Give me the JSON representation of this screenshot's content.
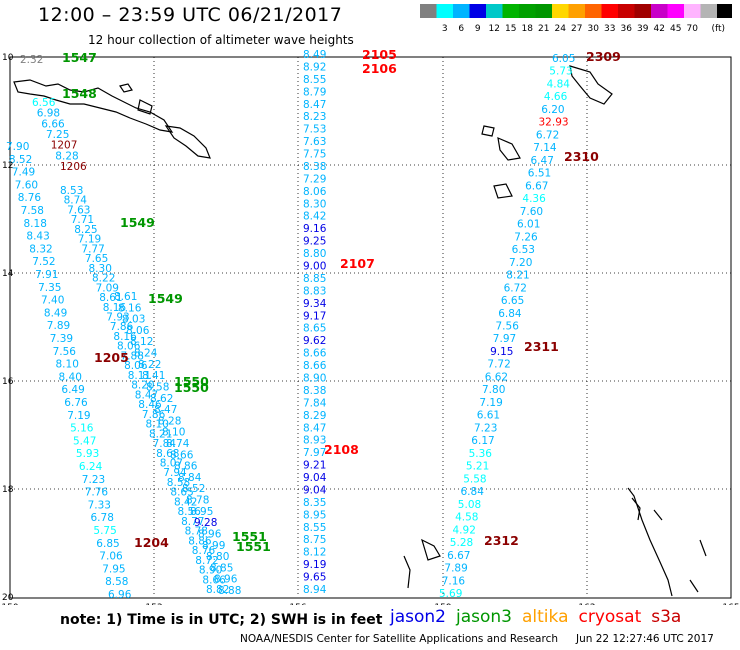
{
  "header": {
    "title": "12:00 – 23:59 UTC 06/21/2017",
    "subtitle": "12 hour collection of altimeter wave heights"
  },
  "colorbar": {
    "colors": [
      "#808080",
      "#00ffff",
      "#00b4ff",
      "#0000e6",
      "#00c8c8",
      "#00b400",
      "#00a000",
      "#009600",
      "#ffd700",
      "#ffa000",
      "#ff6400",
      "#ff0000",
      "#c80000",
      "#a00000",
      "#c800c8",
      "#ff00ff",
      "#ffb4ff",
      "#b4b4b4",
      "#000000"
    ],
    "labels": [
      "3",
      "6",
      "9",
      "12",
      "15",
      "18",
      "21",
      "24",
      "27",
      "30",
      "33",
      "36",
      "39",
      "42",
      "45",
      "70"
    ],
    "unit": "(ft)"
  },
  "axes": {
    "lat_labels": [
      "10",
      "12",
      "14",
      "16",
      "18",
      "20"
    ],
    "lon_labels": [
      "150",
      "153",
      "156",
      "159",
      "162",
      "165"
    ]
  },
  "tracks": {
    "t1547": {
      "labels": [
        {
          "text": "1547",
          "color": "#009600"
        }
      ],
      "points": [
        {
          "v": "2.32",
          "c": "#808080"
        }
      ]
    },
    "t1548": {
      "labels": [
        {
          "text": "1548",
          "color": "#009600"
        }
      ],
      "points": [
        {
          "v": "6.56",
          "c": "#00ffff"
        },
        {
          "v": "6.98",
          "c": "#00b4ff"
        },
        {
          "v": "6.66",
          "c": "#00b4ff"
        },
        {
          "v": "7.25",
          "c": "#00b4ff"
        },
        {
          "v": "1207",
          "c": "#8b0000"
        },
        {
          "v": "8.28",
          "c": "#00b4ff"
        },
        {
          "v": "1206",
          "c": "#8b0000"
        }
      ]
    },
    "t1205": {
      "labels": [
        {
          "text": "1205",
          "color": "#8b0000"
        },
        {
          "text": "1204",
          "color": "#8b0000"
        }
      ],
      "points": [
        {
          "v": "7.90",
          "c": "#00b4ff"
        },
        {
          "v": "8.52",
          "c": "#00b4ff"
        },
        {
          "v": "7.49",
          "c": "#00b4ff"
        },
        {
          "v": "7.60",
          "c": "#00b4ff"
        },
        {
          "v": "8.76",
          "c": "#00b4ff"
        },
        {
          "v": "7.58",
          "c": "#00b4ff"
        },
        {
          "v": "8.18",
          "c": "#00b4ff"
        },
        {
          "v": "8.43",
          "c": "#00b4ff"
        },
        {
          "v": "8.32",
          "c": "#00b4ff"
        },
        {
          "v": "7.52",
          "c": "#00b4ff"
        },
        {
          "v": "7.91",
          "c": "#00b4ff"
        },
        {
          "v": "7.35",
          "c": "#00b4ff"
        },
        {
          "v": "7.40",
          "c": "#00b4ff"
        },
        {
          "v": "8.49",
          "c": "#00b4ff"
        },
        {
          "v": "7.89",
          "c": "#00b4ff"
        },
        {
          "v": "7.39",
          "c": "#00b4ff"
        },
        {
          "v": "7.56",
          "c": "#00b4ff"
        },
        {
          "v": "8.10",
          "c": "#00b4ff"
        },
        {
          "v": "8.40",
          "c": "#00b4ff"
        },
        {
          "v": "6.49",
          "c": "#00b4ff"
        },
        {
          "v": "6.76",
          "c": "#00b4ff"
        },
        {
          "v": "7.19",
          "c": "#00b4ff"
        },
        {
          "v": "5.16",
          "c": "#00ffff"
        },
        {
          "v": "5.47",
          "c": "#00ffff"
        },
        {
          "v": "5.93",
          "c": "#00ffff"
        },
        {
          "v": "6.24",
          "c": "#00ffff"
        },
        {
          "v": "7.23",
          "c": "#00b4ff"
        },
        {
          "v": "7.76",
          "c": "#00b4ff"
        },
        {
          "v": "7.33",
          "c": "#00b4ff"
        },
        {
          "v": "6.78",
          "c": "#00b4ff"
        },
        {
          "v": "5.75",
          "c": "#00ffff"
        },
        {
          "v": "6.85",
          "c": "#00b4ff"
        },
        {
          "v": "7.06",
          "c": "#00b4ff"
        },
        {
          "v": "7.95",
          "c": "#00b4ff"
        },
        {
          "v": "8.58",
          "c": "#00b4ff"
        },
        {
          "v": "6.96",
          "c": "#00b4ff"
        }
      ]
    },
    "t1549a": {
      "labels": [
        {
          "text": "1549",
          "color": "#009600"
        }
      ],
      "points": [
        {
          "v": "8.53",
          "c": "#00b4ff"
        },
        {
          "v": "8.74",
          "c": "#00b4ff"
        },
        {
          "v": "7.63",
          "c": "#00b4ff"
        },
        {
          "v": "7.71",
          "c": "#00b4ff"
        },
        {
          "v": "8.25",
          "c": "#00b4ff"
        },
        {
          "v": "7.19",
          "c": "#00b4ff"
        },
        {
          "v": "7.77",
          "c": "#00b4ff"
        },
        {
          "v": "7.65",
          "c": "#00b4ff"
        },
        {
          "v": "8.30",
          "c": "#00b4ff"
        },
        {
          "v": "8.22",
          "c": "#00b4ff"
        },
        {
          "v": "7.09",
          "c": "#00b4ff"
        },
        {
          "v": "8.61",
          "c": "#00b4ff"
        },
        {
          "v": "8.16",
          "c": "#00b4ff"
        },
        {
          "v": "7.93",
          "c": "#00b4ff"
        },
        {
          "v": "7.86",
          "c": "#00b4ff"
        },
        {
          "v": "8.16",
          "c": "#00b4ff"
        },
        {
          "v": "8.06",
          "c": "#00b4ff"
        },
        {
          "v": "7.88",
          "c": "#00b4ff"
        },
        {
          "v": "8.06",
          "c": "#00b4ff"
        },
        {
          "v": "8.11",
          "c": "#00b4ff"
        },
        {
          "v": "8.20",
          "c": "#00b4ff"
        },
        {
          "v": "8.47",
          "c": "#00b4ff"
        },
        {
          "v": "8.46",
          "c": "#00b4ff"
        },
        {
          "v": "7.86",
          "c": "#00b4ff"
        },
        {
          "v": "8.10",
          "c": "#00b4ff"
        },
        {
          "v": "8.21",
          "c": "#00b4ff"
        },
        {
          "v": "7.84",
          "c": "#00b4ff"
        },
        {
          "v": "8.68",
          "c": "#00b4ff"
        },
        {
          "v": "8.07",
          "c": "#00b4ff"
        },
        {
          "v": "7.94",
          "c": "#00b4ff"
        },
        {
          "v": "8.58",
          "c": "#00b4ff"
        },
        {
          "v": "8.65",
          "c": "#00b4ff"
        },
        {
          "v": "8.42",
          "c": "#00b4ff"
        },
        {
          "v": "8.56",
          "c": "#00b4ff"
        },
        {
          "v": "8.77",
          "c": "#00b4ff"
        },
        {
          "v": "8.78",
          "c": "#00b4ff"
        },
        {
          "v": "8.86",
          "c": "#00b4ff"
        },
        {
          "v": "8.76",
          "c": "#00b4ff"
        },
        {
          "v": "8.72",
          "c": "#00b4ff"
        },
        {
          "v": "8.90",
          "c": "#00b4ff"
        },
        {
          "v": "8.66",
          "c": "#00b4ff"
        },
        {
          "v": "8.82",
          "c": "#00b4ff"
        }
      ]
    },
    "t1549b": {
      "labels": [
        {
          "text": "1549",
          "color": "#009600"
        },
        {
          "text": "1550",
          "color": "#009600"
        },
        {
          "text": "1550",
          "color": "#009600"
        },
        {
          "text": "1551",
          "color": "#009600"
        },
        {
          "text": "1551",
          "color": "#009600"
        }
      ],
      "points": [
        {
          "v": "8.61",
          "c": "#00b4ff"
        },
        {
          "v": "8.16",
          "c": "#00b4ff"
        },
        {
          "v": "8.03",
          "c": "#00b4ff"
        },
        {
          "v": "8.06",
          "c": "#00b4ff"
        },
        {
          "v": "8.12",
          "c": "#00b4ff"
        },
        {
          "v": "8.24",
          "c": "#00b4ff"
        },
        {
          "v": "8.22",
          "c": "#00b4ff"
        },
        {
          "v": "8.41",
          "c": "#00b4ff"
        },
        {
          "v": "8.58",
          "c": "#00b4ff"
        },
        {
          "v": "8.62",
          "c": "#00b4ff"
        },
        {
          "v": "8.47",
          "c": "#00b4ff"
        },
        {
          "v": "8.28",
          "c": "#00b4ff"
        },
        {
          "v": "8.10",
          "c": "#00b4ff"
        },
        {
          "v": "8.74",
          "c": "#00b4ff"
        },
        {
          "v": "8.66",
          "c": "#00b4ff"
        },
        {
          "v": "8.86",
          "c": "#00b4ff"
        },
        {
          "v": "8.84",
          "c": "#00b4ff"
        },
        {
          "v": "8.52",
          "c": "#00b4ff"
        },
        {
          "v": "8.78",
          "c": "#00b4ff"
        },
        {
          "v": "8.95",
          "c": "#00b4ff"
        },
        {
          "v": "9.28",
          "c": "#0000e6"
        },
        {
          "v": "8.96",
          "c": "#00b4ff"
        },
        {
          "v": "8.99",
          "c": "#00b4ff"
        },
        {
          "v": "8.80",
          "c": "#00b4ff"
        },
        {
          "v": "8.85",
          "c": "#00b4ff"
        },
        {
          "v": "8.96",
          "c": "#00b4ff"
        },
        {
          "v": "8.88",
          "c": "#00b4ff"
        }
      ]
    },
    "t2105": {
      "labels": [
        {
          "text": "2105",
          "color": "#ff0000"
        },
        {
          "text": "2106",
          "color": "#ff0000"
        },
        {
          "text": "2107",
          "color": "#ff0000"
        },
        {
          "text": "2108",
          "color": "#ff0000"
        }
      ],
      "points": [
        {
          "v": "8.49",
          "c": "#00b4ff"
        },
        {
          "v": "8.92",
          "c": "#00b4ff"
        },
        {
          "v": "8.55",
          "c": "#00b4ff"
        },
        {
          "v": "8.79",
          "c": "#00b4ff"
        },
        {
          "v": "8.47",
          "c": "#00b4ff"
        },
        {
          "v": "8.23",
          "c": "#00b4ff"
        },
        {
          "v": "7.53",
          "c": "#00b4ff"
        },
        {
          "v": "7.63",
          "c": "#00b4ff"
        },
        {
          "v": "7.75",
          "c": "#00b4ff"
        },
        {
          "v": "8.38",
          "c": "#00b4ff"
        },
        {
          "v": "7.29",
          "c": "#00b4ff"
        },
        {
          "v": "8.06",
          "c": "#00b4ff"
        },
        {
          "v": "8.30",
          "c": "#00b4ff"
        },
        {
          "v": "8.42",
          "c": "#00b4ff"
        },
        {
          "v": "9.16",
          "c": "#0000e6"
        },
        {
          "v": "9.25",
          "c": "#0000e6"
        },
        {
          "v": "8.80",
          "c": "#00b4ff"
        },
        {
          "v": "9.00",
          "c": "#0000e6"
        },
        {
          "v": "8.85",
          "c": "#00b4ff"
        },
        {
          "v": "8.83",
          "c": "#00b4ff"
        },
        {
          "v": "9.34",
          "c": "#0000e6"
        },
        {
          "v": "9.17",
          "c": "#0000e6"
        },
        {
          "v": "8.65",
          "c": "#00b4ff"
        },
        {
          "v": "9.62",
          "c": "#0000e6"
        },
        {
          "v": "8.66",
          "c": "#00b4ff"
        },
        {
          "v": "8.66",
          "c": "#00b4ff"
        },
        {
          "v": "8.90",
          "c": "#00b4ff"
        },
        {
          "v": "8.38",
          "c": "#00b4ff"
        },
        {
          "v": "7.84",
          "c": "#00b4ff"
        },
        {
          "v": "8.29",
          "c": "#00b4ff"
        },
        {
          "v": "8.47",
          "c": "#00b4ff"
        },
        {
          "v": "8.93",
          "c": "#00b4ff"
        },
        {
          "v": "7.97",
          "c": "#00b4ff"
        },
        {
          "v": "9.21",
          "c": "#0000e6"
        },
        {
          "v": "9.04",
          "c": "#0000e6"
        },
        {
          "v": "9.04",
          "c": "#0000e6"
        },
        {
          "v": "8.35",
          "c": "#00b4ff"
        },
        {
          "v": "8.95",
          "c": "#00b4ff"
        },
        {
          "v": "8.55",
          "c": "#00b4ff"
        },
        {
          "v": "8.75",
          "c": "#00b4ff"
        },
        {
          "v": "8.12",
          "c": "#00b4ff"
        },
        {
          "v": "9.19",
          "c": "#0000e6"
        },
        {
          "v": "9.65",
          "c": "#0000e6"
        },
        {
          "v": "8.94",
          "c": "#00b4ff"
        }
      ]
    },
    "t2309": {
      "labels": [
        {
          "text": "2309",
          "color": "#8b0000"
        },
        {
          "text": "2310",
          "color": "#8b0000"
        },
        {
          "text": "2311",
          "color": "#8b0000"
        },
        {
          "text": "2312",
          "color": "#8b0000"
        }
      ],
      "points": [
        {
          "v": "6.05",
          "c": "#00b4ff"
        },
        {
          "v": "5.73",
          "c": "#00ffff"
        },
        {
          "v": "4.84",
          "c": "#00ffff"
        },
        {
          "v": "4.66",
          "c": "#00ffff"
        },
        {
          "v": "6.20",
          "c": "#00b4ff"
        },
        {
          "v": "32.93",
          "c": "#ff0000"
        },
        {
          "v": "6.72",
          "c": "#00b4ff"
        },
        {
          "v": "7.14",
          "c": "#00b4ff"
        },
        {
          "v": "6.47",
          "c": "#00b4ff"
        },
        {
          "v": "6.51",
          "c": "#00b4ff"
        },
        {
          "v": "6.67",
          "c": "#00b4ff"
        },
        {
          "v": "4.36",
          "c": "#00ffff"
        },
        {
          "v": "7.60",
          "c": "#00b4ff"
        },
        {
          "v": "6.01",
          "c": "#00b4ff"
        },
        {
          "v": "7.26",
          "c": "#00b4ff"
        },
        {
          "v": "6.53",
          "c": "#00b4ff"
        },
        {
          "v": "7.20",
          "c": "#00b4ff"
        },
        {
          "v": "8.21",
          "c": "#00b4ff"
        },
        {
          "v": "6.72",
          "c": "#00b4ff"
        },
        {
          "v": "6.65",
          "c": "#00b4ff"
        },
        {
          "v": "6.84",
          "c": "#00b4ff"
        },
        {
          "v": "7.56",
          "c": "#00b4ff"
        },
        {
          "v": "7.97",
          "c": "#00b4ff"
        },
        {
          "v": "9.15",
          "c": "#0000e6"
        },
        {
          "v": "7.72",
          "c": "#00b4ff"
        },
        {
          "v": "6.62",
          "c": "#00b4ff"
        },
        {
          "v": "7.80",
          "c": "#00b4ff"
        },
        {
          "v": "7.19",
          "c": "#00b4ff"
        },
        {
          "v": "6.61",
          "c": "#00b4ff"
        },
        {
          "v": "7.23",
          "c": "#00b4ff"
        },
        {
          "v": "6.17",
          "c": "#00b4ff"
        },
        {
          "v": "5.36",
          "c": "#00ffff"
        },
        {
          "v": "5.21",
          "c": "#00ffff"
        },
        {
          "v": "5.58",
          "c": "#00ffff"
        },
        {
          "v": "6.84",
          "c": "#00b4ff"
        },
        {
          "v": "5.08",
          "c": "#00ffff"
        },
        {
          "v": "4.58",
          "c": "#00ffff"
        },
        {
          "v": "4.92",
          "c": "#00ffff"
        },
        {
          "v": "5.28",
          "c": "#00ffff"
        },
        {
          "v": "6.67",
          "c": "#00b4ff"
        },
        {
          "v": "7.89",
          "c": "#00b4ff"
        },
        {
          "v": "7.16",
          "c": "#00b4ff"
        },
        {
          "v": "5.69",
          "c": "#00ffff"
        }
      ]
    }
  },
  "footer": {
    "note": "note: 1) Time is in UTC; 2) SWH is in feet",
    "legend": [
      {
        "name": "jason2",
        "color": "#0000e6"
      },
      {
        "name": "jason3",
        "color": "#009600"
      },
      {
        "name": "altika",
        "color": "#ffa000"
      },
      {
        "name": "cryosat",
        "color": "#ff0000"
      },
      {
        "name": "s3a",
        "color": "#c80000"
      }
    ],
    "credit": "NOAA/NESDIS Center for Satellite Applications and Research",
    "timestamp": "Jun 22 12:27:46 UTC 2017"
  }
}
